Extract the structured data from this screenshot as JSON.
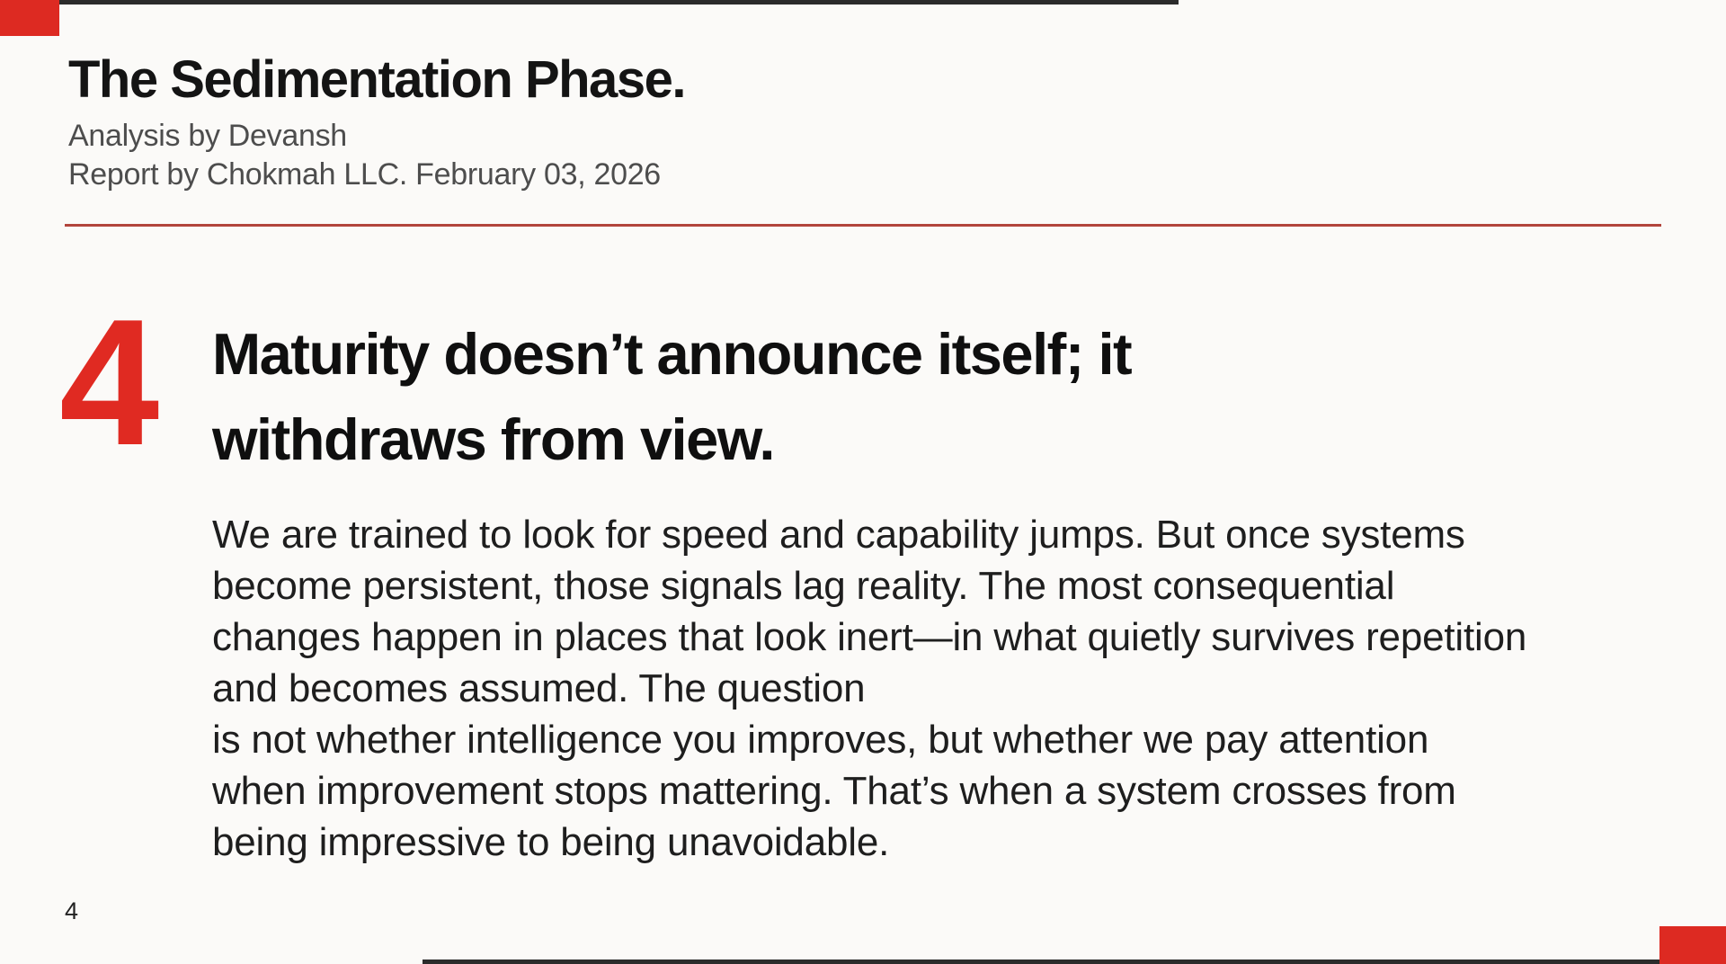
{
  "page": {
    "title": "The Sedimentation Phase.",
    "byline": "Analysis by Devansh",
    "report_line": "Report by Chokmah LLC. February 03, 2026",
    "section_number": "4",
    "heading_lines": [
      "Maturity doesn’t announce itself; it",
      "withdraws from view."
    ],
    "body_lines": [
      "We are trained to look for speed and capability jumps. But once systems",
      "become persistent, those signals lag reality. The most consequential",
      "changes happen in places that look inert—in what quietly survives repetition",
      "and becomes assumed. The question",
      "is not whether intelligence you improves, but whether we pay attention",
      "when improvement stops mattering. That’s when a system crosses from",
      "being impressive to being unavoidable."
    ],
    "page_number": "4",
    "colors": {
      "accent_red": "#e02a22",
      "rule_red": "#b2453c",
      "edge_dark": "#2b2b2b",
      "background": "#fbfaf8"
    }
  }
}
